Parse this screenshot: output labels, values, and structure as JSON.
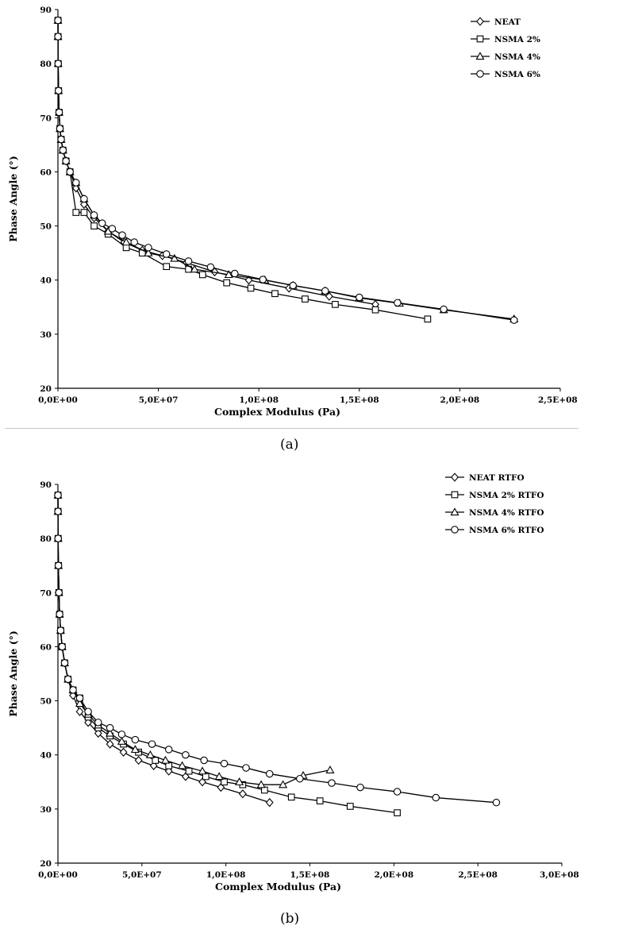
{
  "chart_data": [
    {
      "type": "scatter",
      "panel": "a",
      "caption": "(a)",
      "xlabel": "Complex Modulus (Pa)",
      "ylabel": "Phase Angle (°)",
      "xlim": [
        0,
        250000000
      ],
      "ylim": [
        20,
        90
      ],
      "xticks": [
        0,
        50000000,
        100000000,
        150000000,
        200000000,
        250000000
      ],
      "xtick_labels": [
        "0,0E+00",
        "5,0E+07",
        "1,0E+08",
        "1,5E+08",
        "2,0E+08",
        "2,5E+08"
      ],
      "yticks": [
        20,
        30,
        40,
        50,
        60,
        70,
        80,
        90
      ],
      "ytick_labels": [
        "20",
        "30",
        "40",
        "50",
        "60",
        "70",
        "80",
        "90"
      ],
      "grid": false,
      "legend_position": "top-right",
      "series": [
        {
          "name": "NEAT",
          "marker": "diamond",
          "x": [
            20000,
            50000,
            120000,
            300000,
            600000,
            1000000,
            1600000,
            2500000,
            4000000,
            6000000,
            9000000,
            13000000,
            18000000,
            25000000,
            33000000,
            42000000,
            52000000,
            64000000,
            78000000,
            95000000,
            115000000,
            135000000,
            158000000
          ],
          "y": [
            88,
            85,
            80,
            75,
            71,
            68,
            66,
            64,
            62,
            60,
            57,
            54,
            51.5,
            49,
            47,
            45.5,
            44.5,
            43.2,
            41.5,
            40,
            38.5,
            37,
            35.5
          ]
        },
        {
          "name": "NSMA 2%",
          "marker": "square",
          "x": [
            20000,
            50000,
            120000,
            300000,
            600000,
            1000000,
            1600000,
            2500000,
            4000000,
            6000000,
            9000000,
            13000000,
            18000000,
            25000000,
            34000000,
            42000000,
            54000000,
            65000000,
            72000000,
            84000000,
            96000000,
            108000000,
            123000000,
            138000000,
            158000000,
            184000000
          ],
          "y": [
            88,
            85,
            80,
            75,
            71,
            68,
            66,
            64,
            62,
            60,
            52.5,
            52.5,
            50,
            48.5,
            46,
            45,
            42.5,
            42,
            41,
            39.5,
            38.5,
            37.5,
            36.5,
            35.5,
            34.5,
            32.8
          ]
        },
        {
          "name": "NSMA 4%",
          "marker": "triangle",
          "x": [
            20000,
            50000,
            120000,
            300000,
            600000,
            1000000,
            1600000,
            2500000,
            4000000,
            6000000,
            9000000,
            13000000,
            18000000,
            25000000,
            34000000,
            45000000,
            58000000,
            68000000,
            85000000,
            103000000,
            117000000,
            133000000,
            150000000,
            170000000,
            192000000,
            227000000
          ],
          "y": [
            88,
            85,
            80,
            75,
            71,
            68,
            66,
            64,
            62,
            60,
            58,
            55,
            52,
            49,
            47,
            45,
            44,
            42,
            41,
            40,
            39,
            38,
            36.7,
            35.7,
            34.5,
            32.8
          ]
        },
        {
          "name": "NSMA 6%",
          "marker": "circle",
          "x": [
            20000,
            50000,
            120000,
            300000,
            600000,
            1000000,
            1600000,
            2500000,
            4000000,
            6000000,
            9000000,
            13000000,
            18000000,
            22000000,
            27000000,
            32000000,
            38000000,
            45000000,
            54000000,
            65000000,
            76000000,
            88000000,
            102000000,
            117000000,
            133000000,
            150000000,
            169000000,
            192000000,
            227000000
          ],
          "y": [
            88,
            85,
            80,
            75,
            71,
            68,
            66,
            64,
            62,
            60,
            58,
            55,
            52,
            50.5,
            49.5,
            48.3,
            47,
            46,
            44.8,
            43.5,
            42.4,
            41.2,
            40.1,
            39,
            38,
            36.8,
            35.8,
            34.6,
            32.6
          ]
        }
      ]
    },
    {
      "type": "scatter",
      "panel": "b",
      "caption": "(b)",
      "xlabel": "Complex Modulus (Pa)",
      "ylabel": "Phase Angle (°)",
      "xlim": [
        0,
        300000000
      ],
      "ylim": [
        20,
        90
      ],
      "xticks": [
        0,
        50000000,
        100000000,
        150000000,
        200000000,
        250000000,
        300000000
      ],
      "xtick_labels": [
        "0,0E+00",
        "5,0E+07",
        "1,0E+08",
        "1,5E+08",
        "2,0E+08",
        "2,5E+08",
        "3,0E+08"
      ],
      "yticks": [
        20,
        30,
        40,
        50,
        60,
        70,
        80,
        90
      ],
      "ytick_labels": [
        "20",
        "30",
        "40",
        "50",
        "60",
        "70",
        "80",
        "90"
      ],
      "grid": false,
      "legend_position": "top-right",
      "series": [
        {
          "name": "NEAT RTFO",
          "marker": "diamond",
          "x": [
            20000,
            50000,
            120000,
            300000,
            600000,
            1000000,
            1600000,
            2500000,
            4000000,
            6000000,
            9000000,
            13000000,
            18000000,
            24000000,
            31000000,
            39000000,
            48000000,
            57000000,
            66000000,
            76000000,
            86000000,
            97000000,
            110000000,
            126000000
          ],
          "y": [
            88,
            85,
            80,
            75,
            70,
            66,
            63,
            60,
            57,
            54,
            51,
            48,
            46,
            44,
            42,
            40.5,
            39,
            38,
            37,
            36,
            35,
            34,
            32.8,
            31.2
          ]
        },
        {
          "name": "NSMA 2% RTFO",
          "marker": "square",
          "x": [
            20000,
            50000,
            120000,
            300000,
            600000,
            1000000,
            1600000,
            2500000,
            4000000,
            6000000,
            9000000,
            13000000,
            18000000,
            24000000,
            31000000,
            39000000,
            48000000,
            58000000,
            66000000,
            78000000,
            88000000,
            99000000,
            110000000,
            123000000,
            139000000,
            156000000,
            174000000,
            202000000
          ],
          "y": [
            88,
            85,
            80,
            75,
            70,
            66,
            63,
            60,
            57,
            54,
            52,
            50.5,
            47,
            45,
            43.5,
            42,
            40.5,
            39,
            38,
            37,
            36,
            35,
            34.5,
            33.5,
            32.2,
            31.5,
            30.5,
            29.3
          ]
        },
        {
          "name": "NSMA 4% RTFO",
          "marker": "triangle",
          "x": [
            20000,
            50000,
            120000,
            300000,
            600000,
            1000000,
            1600000,
            2500000,
            4000000,
            6000000,
            9000000,
            13000000,
            18000000,
            24000000,
            31000000,
            38000000,
            46000000,
            55000000,
            64000000,
            74000000,
            86000000,
            96000000,
            108000000,
            121000000,
            134000000,
            146000000,
            162000000
          ],
          "y": [
            88,
            85,
            80,
            75,
            70,
            66,
            63,
            60,
            57,
            54,
            52,
            49.5,
            47.5,
            45.5,
            44,
            42.5,
            41,
            40,
            39,
            38,
            37,
            36,
            35,
            34.5,
            34.5,
            36.2,
            37.2
          ]
        },
        {
          "name": "NSMA 6% RTFO",
          "marker": "circle",
          "x": [
            20000,
            50000,
            120000,
            300000,
            600000,
            1000000,
            1600000,
            2500000,
            4000000,
            6000000,
            9000000,
            13000000,
            18000000,
            24000000,
            31000000,
            38000000,
            46000000,
            56000000,
            66000000,
            76000000,
            87000000,
            99000000,
            112000000,
            126000000,
            144000000,
            163000000,
            180000000,
            202000000,
            225000000,
            261000000
          ],
          "y": [
            88,
            85,
            80,
            75,
            70,
            66,
            63,
            60,
            57,
            54,
            52,
            50.5,
            48,
            46,
            45,
            43.8,
            42.8,
            42,
            41,
            40,
            39,
            38.4,
            37.6,
            36.5,
            35.6,
            34.8,
            34,
            33.2,
            32.1,
            31.2
          ]
        }
      ]
    }
  ]
}
